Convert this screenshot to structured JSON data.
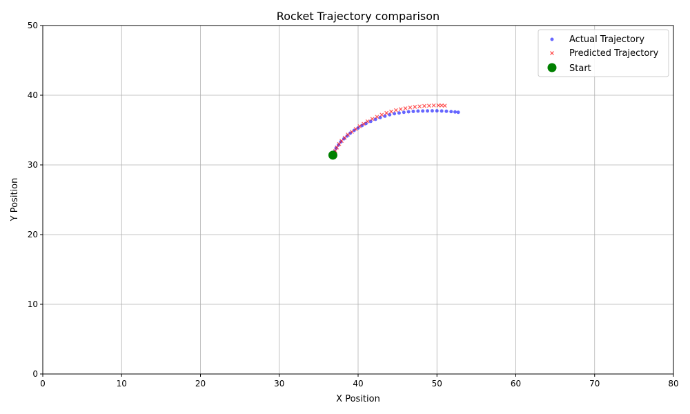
{
  "chart_data": {
    "type": "scatter",
    "title": "Rocket Trajectory comparison",
    "xlabel": "X Position",
    "ylabel": "Y Position",
    "xlim": [
      0,
      80
    ],
    "ylim": [
      0,
      50
    ],
    "xticks": [
      0,
      10,
      20,
      30,
      40,
      50,
      60,
      70,
      80
    ],
    "yticks": [
      0,
      10,
      20,
      30,
      40,
      50
    ],
    "grid": true,
    "legend_position": "top-right",
    "series": [
      {
        "name": "Actual Trajectory",
        "marker": "circle",
        "color": "#0000ff",
        "points": [
          [
            36.8,
            31.4
          ],
          [
            37.0,
            31.9
          ],
          [
            37.2,
            32.4
          ],
          [
            37.5,
            32.85
          ],
          [
            37.8,
            33.3
          ],
          [
            38.2,
            33.75
          ],
          [
            38.6,
            34.15
          ],
          [
            39.0,
            34.55
          ],
          [
            39.5,
            34.95
          ],
          [
            40.0,
            35.3
          ],
          [
            40.5,
            35.65
          ],
          [
            41.0,
            35.95
          ],
          [
            41.6,
            36.25
          ],
          [
            42.2,
            36.55
          ],
          [
            42.8,
            36.8
          ],
          [
            43.4,
            37.0
          ],
          [
            44.0,
            37.2
          ],
          [
            44.6,
            37.35
          ],
          [
            45.2,
            37.45
          ],
          [
            45.8,
            37.55
          ],
          [
            46.4,
            37.62
          ],
          [
            47.0,
            37.68
          ],
          [
            47.6,
            37.72
          ],
          [
            48.2,
            37.74
          ],
          [
            48.8,
            37.75
          ],
          [
            49.4,
            37.76
          ],
          [
            50.0,
            37.76
          ],
          [
            50.6,
            37.74
          ],
          [
            51.2,
            37.7
          ],
          [
            51.8,
            37.65
          ],
          [
            52.3,
            37.6
          ],
          [
            52.7,
            37.55
          ]
        ]
      },
      {
        "name": "Predicted Trajectory",
        "marker": "x",
        "color": "#ff0000",
        "points": [
          [
            36.9,
            31.5
          ],
          [
            37.1,
            32.0
          ],
          [
            37.3,
            32.5
          ],
          [
            37.6,
            33.0
          ],
          [
            37.9,
            33.45
          ],
          [
            38.3,
            33.9
          ],
          [
            38.7,
            34.35
          ],
          [
            39.2,
            34.75
          ],
          [
            39.7,
            35.15
          ],
          [
            40.2,
            35.55
          ],
          [
            40.7,
            35.9
          ],
          [
            41.2,
            36.25
          ],
          [
            41.8,
            36.6
          ],
          [
            42.4,
            36.9
          ],
          [
            43.0,
            37.2
          ],
          [
            43.6,
            37.45
          ],
          [
            44.2,
            37.65
          ],
          [
            44.8,
            37.85
          ],
          [
            45.4,
            38.0
          ],
          [
            46.0,
            38.12
          ],
          [
            46.6,
            38.24
          ],
          [
            47.2,
            38.33
          ],
          [
            47.8,
            38.4
          ],
          [
            48.4,
            38.46
          ],
          [
            49.0,
            38.5
          ],
          [
            49.6,
            38.53
          ],
          [
            50.2,
            38.54
          ],
          [
            50.6,
            38.53
          ],
          [
            51.0,
            38.5
          ]
        ]
      },
      {
        "name": "Start",
        "marker": "circle-large",
        "color": "#008000",
        "points": [
          [
            36.8,
            31.4
          ]
        ]
      }
    ]
  }
}
